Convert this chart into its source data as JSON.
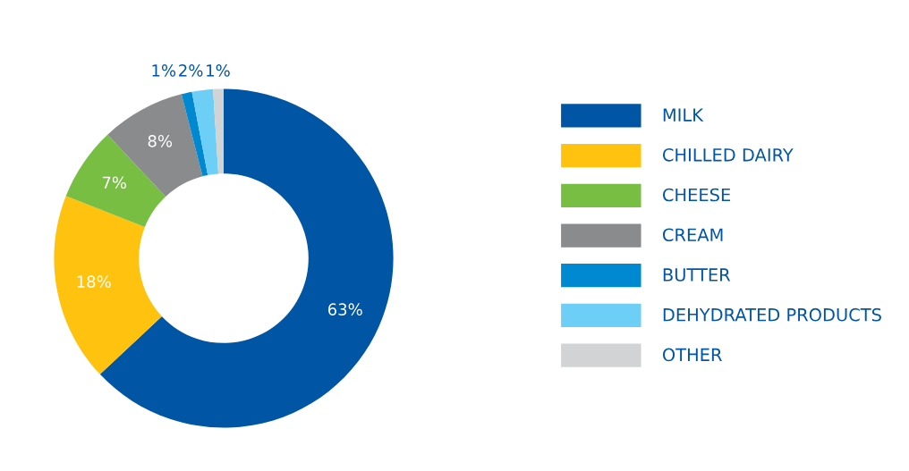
{
  "chart_data": {
    "type": "donut",
    "categories": [
      "MILK",
      "CHILLED DAIRY",
      "CHEESE",
      "CREAM",
      "BUTTER",
      "DEHYDRATED PRODUCTS",
      "OTHER"
    ],
    "values": [
      63,
      18,
      7,
      8,
      1,
      2,
      1
    ],
    "value_labels": [
      "63%",
      "18%",
      "7%",
      "8%",
      "1%",
      "2%",
      "1%"
    ],
    "colors": [
      "#0055a5",
      "#ffc20e",
      "#78be43",
      "#8a8b8d",
      "#0088d1",
      "#6dcff6",
      "#d1d3d4"
    ],
    "legend": "right"
  }
}
